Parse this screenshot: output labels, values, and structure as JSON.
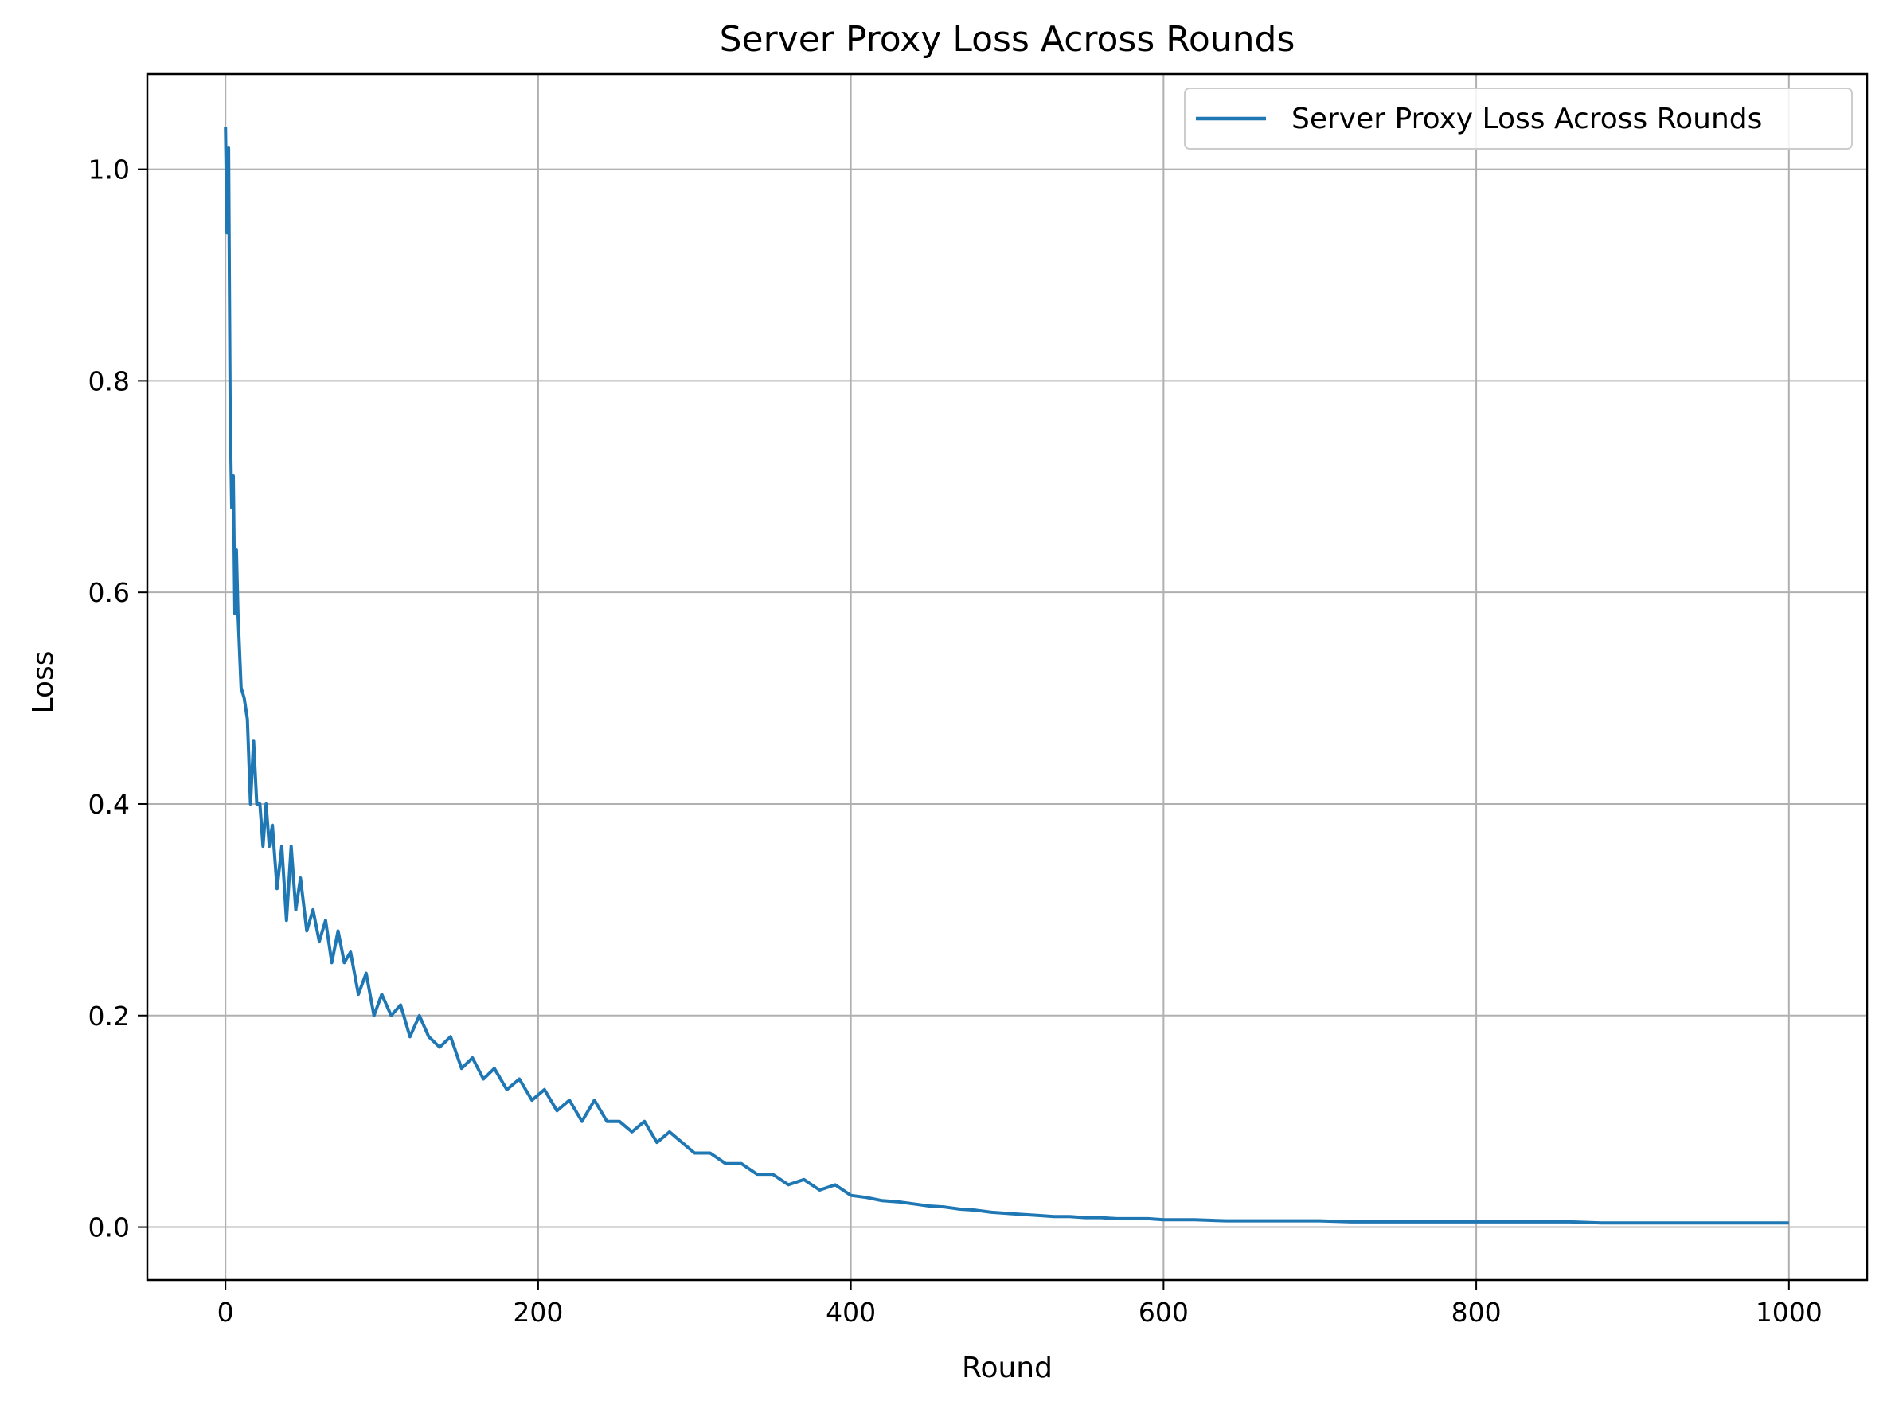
{
  "chart_data": {
    "type": "line",
    "title": "Server Proxy Loss Across Rounds",
    "xlabel": "Round",
    "ylabel": "Loss",
    "xlim": [
      -50,
      1050
    ],
    "ylim": [
      -0.05,
      1.09
    ],
    "xticks": [
      0,
      200,
      400,
      600,
      800,
      1000
    ],
    "yticks": [
      0.0,
      0.2,
      0.4,
      0.6,
      0.8,
      1.0
    ],
    "xtick_labels": [
      "0",
      "200",
      "400",
      "600",
      "800",
      "1000"
    ],
    "ytick_labels": [
      "0.0",
      "0.2",
      "0.4",
      "0.6",
      "0.8",
      "1.0"
    ],
    "grid": true,
    "legend_position": "top-right",
    "series": [
      {
        "name": "Server Proxy Loss Across Rounds",
        "color": "#1f77b4",
        "x": [
          0,
          1,
          2,
          3,
          4,
          5,
          6,
          7,
          8,
          10,
          12,
          14,
          16,
          18,
          20,
          22,
          24,
          26,
          28,
          30,
          33,
          36,
          39,
          42,
          45,
          48,
          52,
          56,
          60,
          64,
          68,
          72,
          76,
          80,
          85,
          90,
          95,
          100,
          106,
          112,
          118,
          124,
          130,
          137,
          144,
          151,
          158,
          165,
          172,
          180,
          188,
          196,
          204,
          212,
          220,
          228,
          236,
          244,
          252,
          260,
          268,
          276,
          284,
          292,
          300,
          310,
          320,
          330,
          340,
          350,
          360,
          370,
          380,
          390,
          400,
          410,
          420,
          430,
          440,
          450,
          460,
          470,
          480,
          490,
          500,
          510,
          520,
          530,
          540,
          550,
          560,
          570,
          580,
          590,
          600,
          620,
          640,
          660,
          680,
          700,
          720,
          740,
          760,
          780,
          800,
          820,
          840,
          860,
          880,
          900,
          920,
          940,
          960,
          980,
          1000
        ],
        "y": [
          1.04,
          0.94,
          1.02,
          0.77,
          0.68,
          0.71,
          0.58,
          0.64,
          0.58,
          0.51,
          0.5,
          0.48,
          0.4,
          0.46,
          0.4,
          0.4,
          0.36,
          0.4,
          0.36,
          0.38,
          0.32,
          0.36,
          0.29,
          0.36,
          0.3,
          0.33,
          0.28,
          0.3,
          0.27,
          0.29,
          0.25,
          0.28,
          0.25,
          0.26,
          0.22,
          0.24,
          0.2,
          0.22,
          0.2,
          0.21,
          0.18,
          0.2,
          0.18,
          0.17,
          0.18,
          0.15,
          0.16,
          0.14,
          0.15,
          0.13,
          0.14,
          0.12,
          0.13,
          0.11,
          0.12,
          0.1,
          0.12,
          0.1,
          0.1,
          0.09,
          0.1,
          0.08,
          0.09,
          0.08,
          0.07,
          0.07,
          0.06,
          0.06,
          0.05,
          0.05,
          0.04,
          0.045,
          0.035,
          0.04,
          0.03,
          0.028,
          0.025,
          0.024,
          0.022,
          0.02,
          0.019,
          0.017,
          0.016,
          0.014,
          0.013,
          0.012,
          0.011,
          0.01,
          0.01,
          0.009,
          0.009,
          0.008,
          0.008,
          0.008,
          0.007,
          0.007,
          0.006,
          0.006,
          0.006,
          0.006,
          0.005,
          0.005,
          0.005,
          0.005,
          0.005,
          0.005,
          0.005,
          0.005,
          0.004,
          0.004,
          0.004,
          0.004,
          0.004,
          0.004,
          0.004
        ]
      }
    ]
  }
}
